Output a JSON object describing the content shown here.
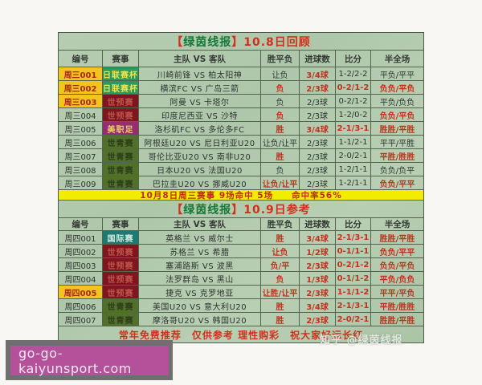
{
  "columns": [
    "编号",
    "赛事",
    "主队 VS 客队",
    "胜平负",
    "进球数",
    "比分",
    "半全场"
  ],
  "colors": {
    "table_bg": "#b2c9ae",
    "hit_red": "#c0321e",
    "highlight_yellow": "#f3c41d",
    "banner_yellow": "#f2ed00",
    "title_red": "#d2301c",
    "title_green": "#157a3a",
    "site_box_pink": "#b5519a",
    "leagues": {
      "日联赛杯": {
        "bg": "#2a9a5e",
        "fg": "#f2e24a"
      },
      "世预赛": {
        "bg": "#7e1620",
        "fg": "#c0544a"
      },
      "美职足": {
        "bg": "#962d72",
        "fg": "#e6d455"
      },
      "世青赛": {
        "bg": "#50702c",
        "fg": "#2e3c18"
      },
      "国际赛": {
        "bg": "#1b7a74",
        "fg": "#d8e8d8"
      }
    }
  },
  "section1": {
    "title": {
      "bl": "【",
      "brand": "绿茵线报",
      "br": "】",
      "rest": "10.8日回顾"
    },
    "rows": [
      {
        "id": "周三001",
        "hl": true,
        "league": "日联赛杯",
        "teams": "川崎前锋 VS 柏太阳神",
        "wdl": "让负",
        "goals": "3/4球",
        "score": "1-2/2-2",
        "hft": "平负/平平",
        "hits": [
          false,
          true,
          false,
          false
        ]
      },
      {
        "id": "周三002",
        "hl": true,
        "league": "日联赛杯",
        "teams": "横滨FC VS 广岛三箭",
        "wdl": "负",
        "goals": "2/3球",
        "score": "0-2/1-2",
        "hft": "负负/平负",
        "hits": [
          true,
          true,
          true,
          true
        ]
      },
      {
        "id": "周三003",
        "hl": true,
        "league": "世预赛",
        "teams": "阿曼 VS 卡塔尔",
        "wdl": "负",
        "goals": "2/3球",
        "score": "0-2/1-2",
        "hft": "平负/负负",
        "hits": [
          false,
          false,
          false,
          false
        ]
      },
      {
        "id": "周三004",
        "hl": false,
        "league": "世预赛",
        "teams": "印度尼西亚 VS 沙特",
        "wdl": "负",
        "goals": "2/3球",
        "score": "1-2/0-2",
        "hft": "负负/平负",
        "hits": [
          true,
          false,
          false,
          true
        ]
      },
      {
        "id": "周三005",
        "hl": false,
        "league": "美职足",
        "teams": "洛杉矶FC VS 多伦多FC",
        "wdl": "胜",
        "goals": "3/4球",
        "score": "2-1/3-1",
        "hft": "胜胜/平胜",
        "hits": [
          true,
          true,
          true,
          true
        ]
      },
      {
        "id": "周三006",
        "hl": false,
        "league": "世青赛",
        "teams": "阿根廷U20 VS 尼日利亚U20",
        "wdl": "让负/让平",
        "goals": "2/3球",
        "score": "1-1/2-1",
        "hft": "平平/平胜",
        "hits": [
          false,
          false,
          false,
          false
        ]
      },
      {
        "id": "周三007",
        "hl": false,
        "league": "世青赛",
        "teams": "哥伦比亚U20 VS 南非U20",
        "wdl": "胜",
        "goals": "2/3球",
        "score": "2-0/2-1",
        "hft": "平胜/胜胜",
        "hits": [
          true,
          false,
          false,
          true
        ]
      },
      {
        "id": "周三008",
        "hl": false,
        "league": "世青赛",
        "teams": "日本U20 VS 法国U20",
        "wdl": "负",
        "goals": "2/3球",
        "score": "1-2/1-1",
        "hft": "负负/负平",
        "hits": [
          false,
          false,
          false,
          false
        ]
      },
      {
        "id": "周三009",
        "hl": false,
        "league": "世青赛",
        "teams": "巴拉圭U20 VS 挪威U20",
        "wdl": "让负/让平",
        "goals": "2/3球",
        "score": "1-2/1-1",
        "hft": "负负/平平",
        "hits": [
          true,
          false,
          false,
          true
        ]
      }
    ],
    "summary": "10月8日周三赛事 9场命中 5场　　命中率56%"
  },
  "section2": {
    "title": {
      "bl": "【",
      "brand": "绿茵线报",
      "br": "】",
      "rest": "10.9日参考"
    },
    "rows": [
      {
        "id": "周四001",
        "hl": false,
        "league": "国际赛",
        "teams": "英格兰 VS 威尔士",
        "wdl": "胜",
        "goals": "3/4球",
        "score": "2-1/3-1",
        "hft": "胜胜/平胜",
        "hits": [
          true,
          true,
          true,
          true
        ]
      },
      {
        "id": "周四002",
        "hl": false,
        "league": "世预赛",
        "teams": "苏格兰 VS 希腊",
        "wdl": "让负",
        "goals": "1/2球",
        "score": "0-1/1-1",
        "hft": "负负/平平",
        "hits": [
          true,
          true,
          true,
          true
        ]
      },
      {
        "id": "周四003",
        "hl": false,
        "league": "世预赛",
        "teams": "塞浦路斯 VS 波黑",
        "wdl": "负/平",
        "goals": "2/3球",
        "score": "0-2/1-2",
        "hft": "负负/平负",
        "hits": [
          true,
          true,
          true,
          true
        ]
      },
      {
        "id": "周四004",
        "hl": false,
        "league": "世预赛",
        "teams": "法罗群岛 VS 黑山",
        "wdl": "负",
        "goals": "1/3球",
        "score": "0-1/1-2",
        "hft": "平负/负负",
        "hits": [
          true,
          true,
          true,
          true
        ]
      },
      {
        "id": "周四005",
        "hl": true,
        "league": "世预赛",
        "teams": "捷克 VS 克罗地亚",
        "wdl": "让胜/让平",
        "goals": "2/3球",
        "score": "1-1/1-2",
        "hft": "平平/平负",
        "hits": [
          true,
          true,
          true,
          true
        ]
      },
      {
        "id": "周四006",
        "hl": false,
        "league": "世青赛",
        "teams": "美国U20 VS 意大利U20",
        "wdl": "胜",
        "goals": "3/4球",
        "score": "2-1/3-1",
        "hft": "平胜/胜胜",
        "hits": [
          true,
          true,
          true,
          true
        ]
      },
      {
        "id": "周四007",
        "hl": false,
        "league": "世青赛",
        "teams": "摩洛哥U20 VS 韩国U20",
        "wdl": "胜",
        "goals": "2/3球",
        "score": "2-0/2-1",
        "hft": "胜胜/平胜",
        "hits": [
          true,
          true,
          true,
          true
        ]
      }
    ]
  },
  "footer": "常年免费推荐　仅供参考  理性购彩　祝大家好运长红",
  "watermarks": {
    "zhihu": "知乎 @绿茵线报",
    "site": "go-go-kaiyunsport.com"
  }
}
